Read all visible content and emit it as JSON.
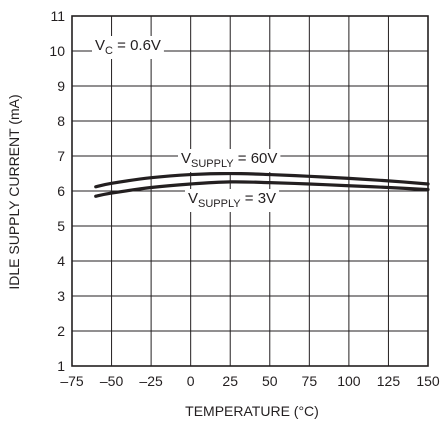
{
  "chart_data": {
    "type": "line",
    "xlabel": "TEMPERATURE (°C)",
    "ylabel": "IDLE SUPPLY CURRENT (mA)",
    "xlim": [
      -75,
      150
    ],
    "ylim": [
      1,
      11
    ],
    "x_ticks": [
      "–75",
      "–50",
      "–25",
      "0",
      "25",
      "50",
      "75",
      "100",
      "125",
      "150"
    ],
    "y_ticks": [
      "1",
      "2",
      "3",
      "4",
      "5",
      "6",
      "7",
      "8",
      "9",
      "10",
      "11"
    ],
    "grid": true,
    "condition": {
      "main": "V",
      "sub": "C",
      "rest": " = 0.6V"
    },
    "series": [
      {
        "label_main": "V",
        "label_sub": "SUPPLY",
        "label_rest": " = 60V",
        "x": [
          -60,
          -50,
          -25,
          0,
          25,
          50,
          75,
          100,
          125,
          150
        ],
        "y": [
          6.12,
          6.22,
          6.38,
          6.47,
          6.5,
          6.47,
          6.42,
          6.36,
          6.29,
          6.2
        ]
      },
      {
        "label_main": "V",
        "label_sub": "SUPPLY",
        "label_rest": " = 3V",
        "x": [
          -60,
          -50,
          -25,
          0,
          25,
          50,
          75,
          100,
          125,
          150
        ],
        "y": [
          5.85,
          5.94,
          6.1,
          6.2,
          6.26,
          6.24,
          6.2,
          6.15,
          6.1,
          6.04
        ]
      }
    ]
  }
}
